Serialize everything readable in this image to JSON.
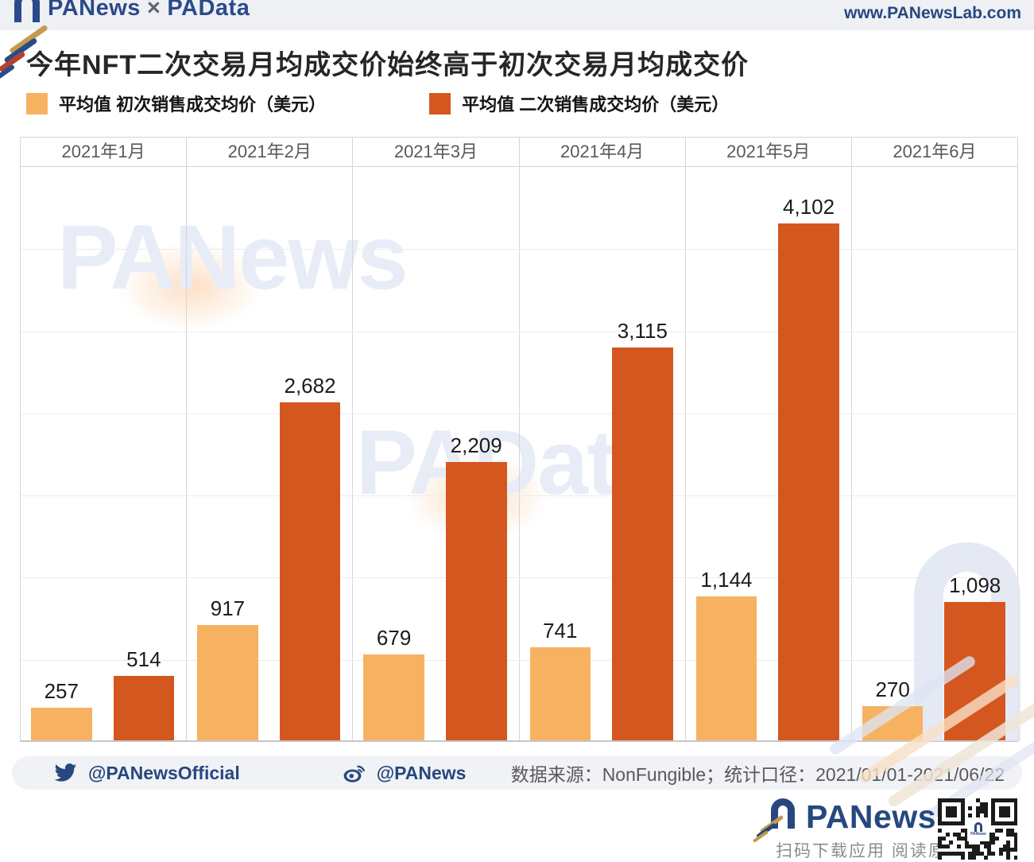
{
  "header": {
    "brand_left": "PANews",
    "brand_sep": "×",
    "brand_right": "PAData",
    "url": "www.PANewsLab.com"
  },
  "title": "今年NFT二次交易月均成交价始终高于初次交易月均成交价",
  "legend": [
    {
      "label": "平均值 初次销售成交均价（美元）",
      "color": "#F7B261"
    },
    {
      "label": "平均值 二次销售成交均价（美元）",
      "color": "#D4571F"
    }
  ],
  "chart_data": {
    "type": "bar",
    "title": "今年NFT二次交易月均成交价始终高于初次交易月均成交价",
    "categories": [
      "2021年1月",
      "2021年2月",
      "2021年3月",
      "2021年4月",
      "2021年5月",
      "2021年6月"
    ],
    "series": [
      {
        "name": "平均值 初次销售成交均价（美元）",
        "color": "#F7B261",
        "values": [
          257,
          917,
          679,
          741,
          1144,
          270
        ],
        "labels": [
          "257",
          "917",
          "679",
          "741",
          "1,144",
          "270"
        ]
      },
      {
        "name": "平均值 二次销售成交均价（美元）",
        "color": "#D4571F",
        "values": [
          514,
          2682,
          2209,
          3115,
          4102,
          1098
        ],
        "labels": [
          "514",
          "2,682",
          "2,209",
          "3,115",
          "4,102",
          "1,098"
        ]
      }
    ],
    "ylim": [
      0,
      4560
    ],
    "grid": "faint-horizontal",
    "legend_position": "top-left",
    "value_labels": "above-bars"
  },
  "watermarks": {
    "text1": "PANews",
    "text2": "PAData"
  },
  "footer": {
    "twitter_handle": "@PANewsOfficial",
    "weibo_handle": "@PANews",
    "source": "数据来源：NonFungible；统计口径：2021/01/01-2021/06/22"
  },
  "bottom_brand": {
    "name": "PANews",
    "caption": "扫码下载应用 阅读原文"
  }
}
